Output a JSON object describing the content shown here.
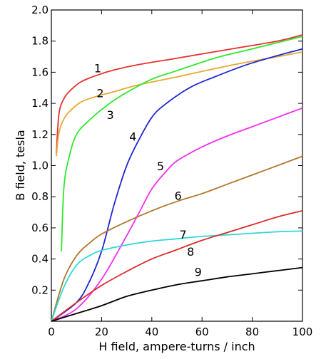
{
  "chart_data": {
    "type": "line",
    "title": "",
    "xlabel": "H field, ampere-turns / inch",
    "ylabel": "B field, tesla",
    "xlim": [
      0,
      100
    ],
    "ylim": [
      0,
      2.0
    ],
    "x_ticks": [
      0,
      20,
      40,
      60,
      80,
      100
    ],
    "x_tick_labels": [
      "0",
      "20",
      "40",
      "60",
      "80",
      "100"
    ],
    "y_ticks": [
      0.2,
      0.4,
      0.6,
      0.8,
      1.0,
      1.2,
      1.4,
      1.6,
      1.8,
      2.0
    ],
    "y_tick_labels": [
      "0.2",
      "0.4",
      "0.6",
      "0.8",
      "1.0",
      "1.2",
      "1.4",
      "1.6",
      "1.8",
      "2.0"
    ],
    "grid": false,
    "legend": "none",
    "series": [
      {
        "label": "1",
        "color": "#e8302f",
        "x": [
          2,
          3,
          5,
          8,
          12,
          18,
          25,
          35,
          50,
          70,
          90,
          100
        ],
        "y": [
          1.08,
          1.33,
          1.43,
          1.49,
          1.54,
          1.58,
          1.615,
          1.65,
          1.69,
          1.745,
          1.8,
          1.84
        ]
      },
      {
        "label": "2",
        "color": "#e8a830",
        "x": [
          2,
          3,
          5,
          8,
          12,
          18,
          25,
          35,
          50,
          70,
          90,
          100
        ],
        "y": [
          1.06,
          1.21,
          1.3,
          1.36,
          1.41,
          1.445,
          1.475,
          1.52,
          1.57,
          1.64,
          1.7,
          1.73
        ]
      },
      {
        "label": "3",
        "color": "#2ee82e",
        "x": [
          4,
          5,
          7,
          10,
          15,
          20,
          25,
          30,
          40,
          50,
          65,
          80,
          100
        ],
        "y": [
          0.45,
          0.86,
          1.05,
          1.2,
          1.29,
          1.36,
          1.42,
          1.47,
          1.555,
          1.61,
          1.69,
          1.75,
          1.83
        ]
      },
      {
        "label": "4",
        "color": "#1f28cf",
        "x": [
          0,
          10,
          15,
          20,
          25,
          30,
          35,
          40,
          45,
          55,
          65,
          80,
          100
        ],
        "y": [
          0.0,
          0.12,
          0.25,
          0.45,
          0.75,
          1.0,
          1.17,
          1.31,
          1.39,
          1.5,
          1.57,
          1.66,
          1.75
        ]
      },
      {
        "label": "5",
        "color": "#f22ff2",
        "x": [
          0,
          10,
          20,
          30,
          35,
          40,
          45,
          50,
          60,
          70,
          80,
          90,
          100
        ],
        "y": [
          0.0,
          0.08,
          0.27,
          0.55,
          0.7,
          0.85,
          0.95,
          1.03,
          1.12,
          1.19,
          1.25,
          1.31,
          1.37
        ]
      },
      {
        "label": "6",
        "color": "#b0782e",
        "x": [
          0,
          5,
          10,
          15,
          20,
          30,
          40,
          50,
          60,
          70,
          80,
          90,
          100
        ],
        "y": [
          0.0,
          0.27,
          0.42,
          0.5,
          0.56,
          0.64,
          0.71,
          0.77,
          0.82,
          0.88,
          0.94,
          1.0,
          1.06
        ]
      },
      {
        "label": "7",
        "color": "#2ed8d8",
        "x": [
          0,
          5,
          10,
          15,
          20,
          30,
          40,
          50,
          60,
          70,
          80,
          90,
          100
        ],
        "y": [
          0.0,
          0.22,
          0.36,
          0.42,
          0.455,
          0.49,
          0.515,
          0.53,
          0.545,
          0.555,
          0.565,
          0.575,
          0.58
        ]
      },
      {
        "label": "8",
        "color": "#dd2a2a",
        "x": [
          0,
          10,
          20,
          30,
          40,
          50,
          60,
          70,
          80,
          90,
          100
        ],
        "y": [
          0.0,
          0.12,
          0.23,
          0.32,
          0.4,
          0.46,
          0.52,
          0.57,
          0.62,
          0.67,
          0.71
        ]
      },
      {
        "label": "9",
        "color": "#000000",
        "x": [
          0,
          10,
          20,
          30,
          40,
          50,
          60,
          70,
          80,
          90,
          100
        ],
        "y": [
          0.0,
          0.05,
          0.1,
          0.16,
          0.2,
          0.235,
          0.26,
          0.285,
          0.305,
          0.325,
          0.345
        ]
      }
    ]
  }
}
